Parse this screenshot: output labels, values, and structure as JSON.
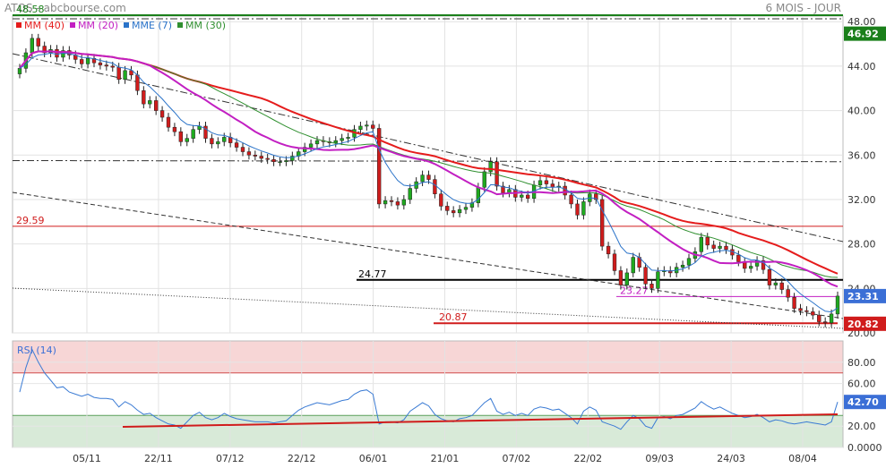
{
  "header": {
    "title": "ATOS - abcbourse.com",
    "period": "6 MOIS - JOUR"
  },
  "chart_data": [
    {
      "type": "candlestick",
      "title": "ATOS - abcbourse.com",
      "legend": [
        {
          "name": "MM (40)",
          "color": "#e51c1c"
        },
        {
          "name": "MM (20)",
          "color": "#c21fc2"
        },
        {
          "name": "MME (7)",
          "color": "#2a73c9"
        },
        {
          "name": "MM (30)",
          "color": "#2f8f2f"
        }
      ],
      "ylim": [
        20,
        48.5
      ],
      "y_ticks": [
        "48.00",
        "44.00",
        "40.00",
        "36.00",
        "32.00",
        "28.00",
        "24.00",
        "20.00"
      ],
      "x_ticks": [
        "05/11",
        "22/11",
        "07/12",
        "22/12",
        "06/01",
        "21/01",
        "07/02",
        "22/02",
        "09/03",
        "24/03",
        "08/04"
      ],
      "last_price": "23.31",
      "price_labels": [
        {
          "label": "46.92",
          "value": 46.92,
          "color": "#1a7f1a"
        },
        {
          "label": "23.31",
          "value": 23.31,
          "color": "#3b6fd6"
        },
        {
          "label": "20.82",
          "value": 20.82,
          "color": "#d01c1c"
        }
      ],
      "annotations": [
        {
          "text": "48.58",
          "value": 48.58,
          "color": "#1a7f1a"
        },
        {
          "text": "29.59",
          "value": 29.59,
          "color": "#d01c1c"
        },
        {
          "text": "24.77",
          "value": 24.77,
          "color": "#000000"
        },
        {
          "text": "23.27",
          "value": 23.27,
          "color": "#c21fc2"
        },
        {
          "text": "20.87",
          "value": 20.87,
          "color": "#d01c1c"
        }
      ],
      "close": [
        43.8,
        45.2,
        46.5,
        45.8,
        45.2,
        45.5,
        44.8,
        45.4,
        45.0,
        44.6,
        44.2,
        44.7,
        44.3,
        44.1,
        44.0,
        43.9,
        42.8,
        43.6,
        43.2,
        41.8,
        40.6,
        40.9,
        40.0,
        39.4,
        38.5,
        38.1,
        37.2,
        37.5,
        38.3,
        38.6,
        37.5,
        37.0,
        37.2,
        37.6,
        37.1,
        36.7,
        36.3,
        36.0,
        35.9,
        35.7,
        35.6,
        35.4,
        35.4,
        35.5,
        35.9,
        36.3,
        36.7,
        37.0,
        37.3,
        37.2,
        37.1,
        37.3,
        37.5,
        37.6,
        38.3,
        38.6,
        38.7,
        38.4,
        31.6,
        31.9,
        31.8,
        31.5,
        32.0,
        33.0,
        33.6,
        34.2,
        33.8,
        32.5,
        31.4,
        31.0,
        30.8,
        31.1,
        31.3,
        31.7,
        33.1,
        34.5,
        35.4,
        33.2,
        32.6,
        32.9,
        32.2,
        32.4,
        32.1,
        33.3,
        33.7,
        33.4,
        33.1,
        33.2,
        32.4,
        31.6,
        30.6,
        31.8,
        32.5,
        32.0,
        27.8,
        27.1,
        25.6,
        24.3,
        25.4,
        26.8,
        25.9,
        24.4,
        24.0,
        25.5,
        25.6,
        25.4,
        25.9,
        26.1,
        26.7,
        27.3,
        28.6,
        27.9,
        27.6,
        27.8,
        27.5,
        27.0,
        26.4,
        25.8,
        26.0,
        26.5,
        25.7,
        24.3,
        24.5,
        23.9,
        23.2,
        22.2,
        22.0,
        21.9,
        21.6,
        21.0,
        20.9,
        21.7,
        23.31
      ],
      "rsi": {
        "label": "RSI (14)",
        "ylim": [
          0,
          100
        ],
        "y_ticks": [
          "80.00",
          "60.00",
          "42.70",
          "20.00",
          "0.0000"
        ],
        "last_value": "42.70",
        "values": [
          52,
          75,
          92,
          80,
          70,
          63,
          56,
          57,
          52,
          50,
          48,
          50,
          47,
          46,
          46,
          45,
          38,
          43,
          40,
          35,
          31,
          32,
          28,
          25,
          22,
          21,
          18,
          24,
          30,
          33,
          28,
          26,
          28,
          32,
          29,
          27,
          26,
          25,
          24,
          24,
          24,
          23,
          24,
          25,
          30,
          35,
          38,
          40,
          42,
          41,
          40,
          42,
          44,
          45,
          50,
          53,
          54,
          50,
          22,
          24,
          24,
          23,
          26,
          34,
          38,
          42,
          39,
          31,
          27,
          25,
          24,
          27,
          28,
          30,
          36,
          42,
          46,
          34,
          31,
          33,
          30,
          32,
          30,
          36,
          38,
          37,
          35,
          36,
          32,
          28,
          22,
          34,
          38,
          35,
          24,
          22,
          20,
          17,
          24,
          30,
          27,
          20,
          18,
          28,
          29,
          27,
          30,
          31,
          34,
          37,
          43,
          39,
          36,
          38,
          35,
          32,
          30,
          28,
          29,
          31,
          28,
          24,
          26,
          25,
          23,
          22,
          23,
          24,
          23,
          22,
          21,
          24,
          42.7
        ]
      }
    }
  ]
}
